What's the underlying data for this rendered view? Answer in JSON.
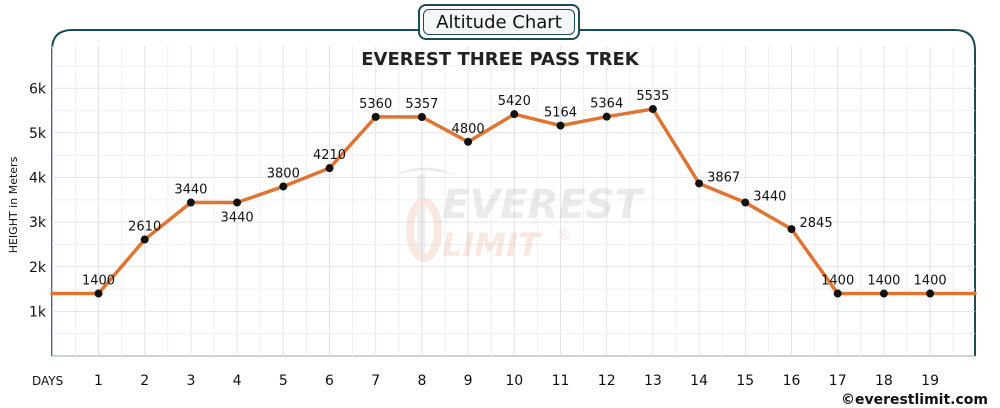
{
  "header": {
    "badge_label": "Altitude Chart"
  },
  "chart_data": {
    "type": "line",
    "title": "EVEREST THREE PASS TREK",
    "xlabel": "DAYS",
    "ylabel": "HEIGHT in Meters",
    "x": [
      1,
      2,
      3,
      4,
      5,
      6,
      7,
      8,
      9,
      10,
      11,
      12,
      13,
      14,
      15,
      16,
      17,
      18,
      19
    ],
    "series": [
      {
        "values": [
          1400,
          2610,
          3440,
          3440,
          3800,
          4210,
          5360,
          5357,
          4800,
          5420,
          5164,
          5364,
          5535,
          3867,
          3440,
          2845,
          1400,
          1400,
          1400
        ]
      }
    ],
    "data_labels": [
      "1400",
      "2610",
      "3440",
      "3440",
      "3800",
      "4210",
      "5360",
      "5357",
      "4800",
      "5420",
      "5164",
      "5364",
      "5535",
      "3867",
      "3440",
      "2845",
      "1400",
      "1400",
      "1400"
    ],
    "yticks": [
      1000,
      2000,
      3000,
      4000,
      5000,
      6000
    ],
    "ytick_labels": [
      "1k",
      "2k",
      "3k",
      "4k",
      "5k",
      "6k"
    ],
    "xtick_labels": [
      "1",
      "2",
      "3",
      "4",
      "5",
      "6",
      "7",
      "8",
      "9",
      "10",
      "11",
      "12",
      "13",
      "14",
      "15",
      "16",
      "17",
      "18",
      "19"
    ],
    "ylim": [
      0,
      6500
    ],
    "grid": true,
    "line_color": "#e07533",
    "point_color": "#111111",
    "frame_color": "#1d4b5a"
  },
  "watermark": {
    "line1": "EVEREST",
    "line2": "LIMIT",
    "mark": "®"
  },
  "footer": {
    "credit": "©everestlimit.com"
  }
}
